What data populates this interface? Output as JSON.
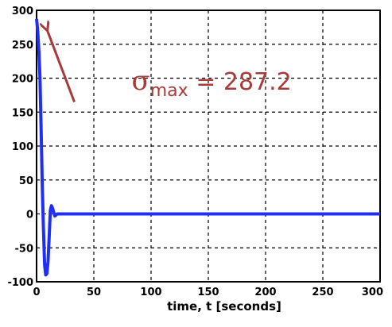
{
  "chart_data": {
    "type": "line",
    "title": "",
    "xlabel": "time, t [seconds]",
    "ylabel": "",
    "xlim": [
      0,
      300
    ],
    "ylim": [
      -100,
      300
    ],
    "x_ticks": [
      0,
      50,
      100,
      150,
      200,
      250,
      300
    ],
    "y_ticks": [
      -100,
      -50,
      0,
      50,
      100,
      150,
      200,
      250,
      300
    ],
    "grid": true,
    "series": [
      {
        "color": "#1f2ff5",
        "x": [
          0,
          1,
          2,
          3,
          4,
          5,
          6,
          7,
          8,
          9,
          10,
          11,
          12,
          13,
          14,
          15,
          16,
          18,
          20,
          25,
          30,
          40,
          60,
          100,
          150,
          200,
          250,
          300
        ],
        "y": [
          287.2,
          270,
          240,
          200,
          120,
          40,
          -20,
          -75,
          -90,
          -88,
          -70,
          -35,
          5,
          12,
          8,
          2,
          -3,
          0,
          0,
          0,
          0,
          0,
          0,
          0,
          0,
          0,
          0,
          0
        ]
      }
    ],
    "annotation": {
      "symbol": "σ",
      "subscript": "max",
      "text": " = 287.2",
      "color": "#a83a3a",
      "value": 287.2
    }
  }
}
